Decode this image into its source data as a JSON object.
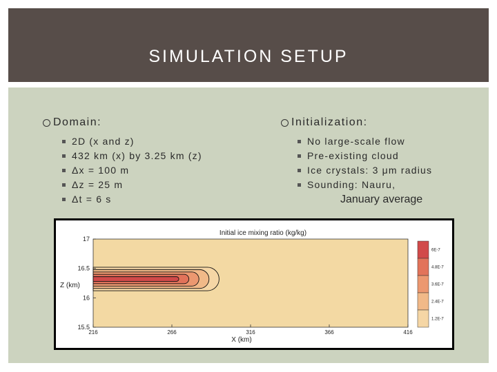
{
  "title": "SIMULATION SETUP",
  "left": {
    "heading": "Domain:",
    "items": [
      "2D (x and z)",
      "432 km (x) by 3.25 km (z)",
      "Δx = 100 m",
      "Δz = 25 m",
      "Δt = 6 s"
    ]
  },
  "right": {
    "heading": "Initialization:",
    "items": [
      "No large-scale flow",
      "Pre-existing cloud",
      "Ice crystals: 3 μm radius",
      "Sounding: Nauru,"
    ],
    "items_cont": "January average"
  },
  "chart_data": {
    "type": "heatmap",
    "title": "Initial ice mixing ratio (kg/kg)",
    "xlabel": "X (km)",
    "ylabel": "Z (km)",
    "xlim": [
      216,
      416
    ],
    "ylim": [
      15.5,
      17
    ],
    "xticks": [
      "216",
      "266",
      "316",
      "366",
      "416"
    ],
    "yticks": [
      "15.5",
      "16",
      "16.5",
      "17"
    ],
    "colorbar": {
      "labels": [
        "6E-7",
        "4.8E-7",
        "3.6E-7",
        "2.4E-7",
        "1.2E-7"
      ],
      "colors": [
        "#d14a4a",
        "#e2735a",
        "#ec9870",
        "#f1b988",
        "#f5d6a5"
      ],
      "background": "#f3d9a3"
    },
    "cloud": {
      "x_end": 296,
      "z_center": 16.32,
      "z_halfwidth": 0.2
    }
  }
}
